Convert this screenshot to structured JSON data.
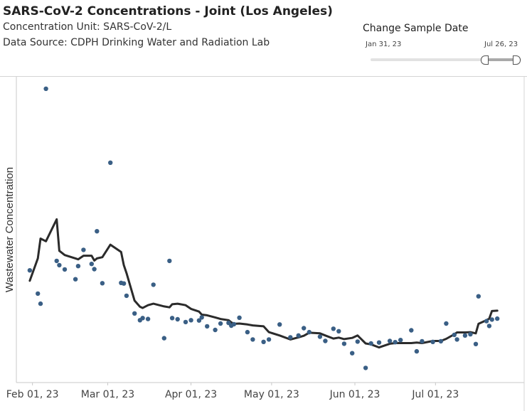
{
  "header": {
    "title": "SARS-CoV-2 Concentrations - Joint (Los Angeles)",
    "unit_line": "Concentration Unit:  SARS-CoV-2/L",
    "source_line": "Data Source: CDPH Drinking Water and Radiation Lab"
  },
  "slider": {
    "label": "Change Sample Date",
    "start_label": "Jan 31, 23",
    "end_label": "Jul 26, 23"
  },
  "colors": {
    "points": "#3a5f85",
    "trend_line": "#2b2b2b",
    "axis": "#c8c8c8"
  },
  "chart_data": {
    "type": "scatter",
    "title": "SARS-CoV-2 Concentrations - Joint (Los Angeles)",
    "xlabel": "",
    "ylabel": "Wastewater Concentration",
    "x_ticks": [
      "Feb 01, 23",
      "Mar 01, 23",
      "Apr 01, 23",
      "May 01, 23",
      "Jun 01, 23",
      "Jul 01, 23"
    ],
    "x_range": [
      "2023-01-26",
      "2023-08-03"
    ],
    "y_range": [
      0,
      100
    ],
    "y_tick_labels_shown": false,
    "grid": false,
    "series": [
      {
        "kind": "points",
        "x": [
          "2023-01-31",
          "2023-02-03",
          "2023-02-04",
          "2023-02-06",
          "2023-02-10",
          "2023-02-11",
          "2023-02-13",
          "2023-02-17",
          "2023-02-18",
          "2023-02-20",
          "2023-02-23",
          "2023-02-24",
          "2023-02-25",
          "2023-02-27",
          "2023-03-02",
          "2023-03-06",
          "2023-03-07",
          "2023-03-08",
          "2023-03-11",
          "2023-03-13",
          "2023-03-14",
          "2023-03-16",
          "2023-03-18",
          "2023-03-22",
          "2023-03-24",
          "2023-03-25",
          "2023-03-27",
          "2023-03-30",
          "2023-04-01",
          "2023-04-04",
          "2023-04-05",
          "2023-04-07",
          "2023-04-10",
          "2023-04-12",
          "2023-04-15",
          "2023-04-16",
          "2023-04-17",
          "2023-04-19",
          "2023-04-22",
          "2023-04-24",
          "2023-04-28",
          "2023-04-30",
          "2023-05-04",
          "2023-05-08",
          "2023-05-11",
          "2023-05-13",
          "2023-05-15",
          "2023-05-19",
          "2023-05-21",
          "2023-05-24",
          "2023-05-26",
          "2023-05-28",
          "2023-05-31",
          "2023-06-02",
          "2023-06-05",
          "2023-06-07",
          "2023-06-10",
          "2023-06-14",
          "2023-06-16",
          "2023-06-18",
          "2023-06-22",
          "2023-06-24",
          "2023-06-26",
          "2023-06-30",
          "2023-07-03",
          "2023-07-05",
          "2023-07-08",
          "2023-07-09",
          "2023-07-12",
          "2023-07-14",
          "2023-07-16",
          "2023-07-17",
          "2023-07-20",
          "2023-07-21",
          "2023-07-22",
          "2023-07-24"
        ],
        "y": [
          36.7,
          29.1,
          25.8,
          96.1,
          39.8,
          38.4,
          37.0,
          33.8,
          38.1,
          43.4,
          38.8,
          37.1,
          49.5,
          32.5,
          71.9,
          32.6,
          32.4,
          28.4,
          22.6,
          20.4,
          21.1,
          20.8,
          32.0,
          14.5,
          39.8,
          21.1,
          20.7,
          19.8,
          20.4,
          20.3,
          21.3,
          18.4,
          17.2,
          19.3,
          19.5,
          18.6,
          19.1,
          21.2,
          16.5,
          14.1,
          13.3,
          14.1,
          19.0,
          14.8,
          15.4,
          17.8,
          16.5,
          15.0,
          13.6,
          17.6,
          16.8,
          12.7,
          9.6,
          13.4,
          4.8,
          12.8,
          13.1,
          13.6,
          13.2,
          13.9,
          17.1,
          10.2,
          13.5,
          13.3,
          13.5,
          19.3,
          15.6,
          14.1,
          15.4,
          15.8,
          12.6,
          28.2,
          20.1,
          18.5,
          20.6,
          20.9
        ]
      },
      {
        "kind": "trend_line",
        "x": [
          "2023-01-31",
          "2023-02-03",
          "2023-02-04",
          "2023-02-06",
          "2023-02-10",
          "2023-02-11",
          "2023-02-13",
          "2023-02-17",
          "2023-02-18",
          "2023-02-20",
          "2023-02-23",
          "2023-02-24",
          "2023-02-25",
          "2023-02-27",
          "2023-03-02",
          "2023-03-06",
          "2023-03-07",
          "2023-03-08",
          "2023-03-11",
          "2023-03-13",
          "2023-03-14",
          "2023-03-16",
          "2023-03-18",
          "2023-03-22",
          "2023-03-24",
          "2023-03-25",
          "2023-03-27",
          "2023-03-30",
          "2023-04-01",
          "2023-04-04",
          "2023-04-05",
          "2023-04-07",
          "2023-04-10",
          "2023-04-12",
          "2023-04-15",
          "2023-04-16",
          "2023-04-17",
          "2023-04-19",
          "2023-04-22",
          "2023-04-24",
          "2023-04-28",
          "2023-04-30",
          "2023-05-04",
          "2023-05-08",
          "2023-05-11",
          "2023-05-13",
          "2023-05-15",
          "2023-05-19",
          "2023-05-21",
          "2023-05-24",
          "2023-05-26",
          "2023-05-28",
          "2023-05-31",
          "2023-06-02",
          "2023-06-05",
          "2023-06-07",
          "2023-06-10",
          "2023-06-14",
          "2023-06-16",
          "2023-06-18",
          "2023-06-22",
          "2023-06-24",
          "2023-06-26",
          "2023-06-30",
          "2023-07-03",
          "2023-07-05",
          "2023-07-08",
          "2023-07-09",
          "2023-07-12",
          "2023-07-14",
          "2023-07-16",
          "2023-07-17",
          "2023-07-20",
          "2023-07-21",
          "2023-07-22",
          "2023-07-24"
        ],
        "y": [
          33.3,
          40.6,
          47.1,
          46.2,
          53.4,
          43.1,
          41.7,
          40.6,
          40.3,
          41.5,
          41.5,
          39.9,
          40.6,
          41.0,
          45.1,
          42.7,
          38.4,
          35.8,
          26.8,
          24.8,
          24.4,
          25.3,
          25.8,
          24.9,
          24.6,
          25.6,
          25.8,
          25.3,
          24.1,
          23.2,
          22.2,
          22.0,
          21.3,
          20.8,
          20.4,
          19.7,
          19.2,
          19.3,
          19.0,
          18.7,
          18.4,
          16.5,
          15.4,
          14.1,
          14.8,
          15.3,
          16.3,
          16.1,
          15.4,
          14.4,
          14.7,
          14.2,
          14.6,
          15.4,
          12.8,
          12.5,
          11.5,
          12.7,
          12.9,
          12.9,
          12.9,
          13.1,
          12.9,
          13.6,
          13.6,
          14.3,
          15.8,
          16.4,
          16.4,
          16.5,
          16.1,
          19.2,
          20.4,
          20.9,
          23.4,
          23.5
        ]
      }
    ]
  }
}
